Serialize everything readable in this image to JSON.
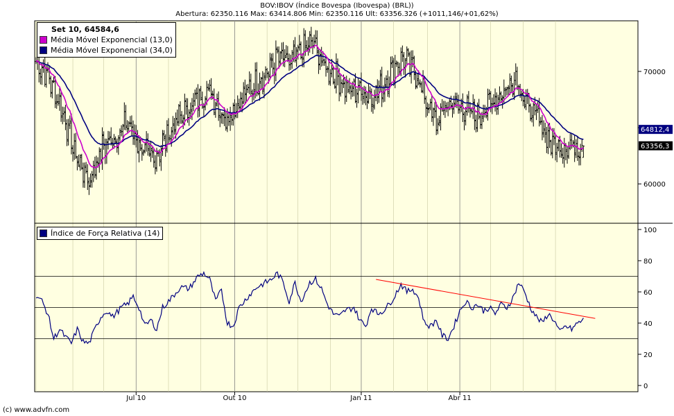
{
  "header": {
    "title": "BOV:IBOV (Índice Bovespa (Ibovespa) (BRL))",
    "subtitle": "Abertura: 62350.116 Max: 63414.806 Min: 62350.116 Ult: 63356.326 (+1011,146/+01,62%)"
  },
  "footer": {
    "credit": "(c) www.advfn.com"
  },
  "legend_main": {
    "heading": "Set 10, 64584,6",
    "items": [
      {
        "label": "Média Móvel Exponencial (13,0)",
        "color": "#cc00cc"
      },
      {
        "label": "Média Móvel Exponencial (34,0)",
        "color": "#000080"
      }
    ]
  },
  "legend_rsi": {
    "items": [
      {
        "label": "Índice de Força Relativa (14)",
        "color": "#000080"
      }
    ]
  },
  "colors": {
    "background": "#ffffe1",
    "bars": "#000000",
    "ema13": "#cc00cc",
    "ema34": "#000080",
    "rsi": "#000080",
    "trendline": "#ff0000"
  },
  "chart_data": [
    {
      "type": "ohlc",
      "title": "BOV:IBOV (Índice Bovespa (Ibovespa) (BRL))",
      "x_tick_labels": [
        "Jul 10",
        "Out 10",
        "Jan 11",
        "Abr 11"
      ],
      "y_tick_labels": [
        "60000",
        "70000"
      ],
      "ylim": [
        56500,
        74500
      ],
      "price_labels": [
        {
          "value": 64812.4,
          "text": "64812,4",
          "series": "ema34"
        },
        {
          "value": 63356.3,
          "text": "63356,3",
          "series": "close"
        }
      ],
      "last_bar": {
        "open": 62350.116,
        "high": 63414.806,
        "low": 62350.116,
        "close": 63356.326
      },
      "price_anchors": [
        [
          0,
          70900
        ],
        [
          8,
          69600
        ],
        [
          18,
          66500
        ],
        [
          27,
          62500
        ],
        [
          36,
          60200
        ],
        [
          45,
          63200
        ],
        [
          55,
          64300
        ],
        [
          62,
          65500
        ],
        [
          72,
          63000
        ],
        [
          80,
          62200
        ],
        [
          88,
          64000
        ],
        [
          98,
          66000
        ],
        [
          108,
          67300
        ],
        [
          118,
          68400
        ],
        [
          128,
          65800
        ],
        [
          136,
          66900
        ],
        [
          145,
          68500
        ],
        [
          155,
          69600
        ],
        [
          165,
          71300
        ],
        [
          172,
          70700
        ],
        [
          180,
          71800
        ],
        [
          188,
          72600
        ],
        [
          196,
          70400
        ],
        [
          204,
          69600
        ],
        [
          212,
          68300
        ],
        [
          220,
          68400
        ],
        [
          228,
          67800
        ],
        [
          236,
          68700
        ],
        [
          244,
          70600
        ],
        [
          250,
          71200
        ],
        [
          258,
          69800
        ],
        [
          266,
          67100
        ],
        [
          272,
          65400
        ],
        [
          280,
          67200
        ],
        [
          290,
          66800
        ],
        [
          300,
          65900
        ],
        [
          310,
          67400
        ],
        [
          318,
          68200
        ],
        [
          326,
          69600
        ],
        [
          334,
          66900
        ],
        [
          340,
          66000
        ],
        [
          345,
          64800
        ],
        [
          350,
          63600
        ],
        [
          355,
          63300
        ],
        [
          358,
          63356
        ]
      ],
      "series": [
        {
          "name": "Média Móvel Exponencial (13,0)",
          "key": "ema13",
          "period": 13
        },
        {
          "name": "Média Móvel Exponencial (34,0)",
          "key": "ema34",
          "period": 34
        }
      ]
    },
    {
      "type": "line",
      "legend": [
        "Índice de Força Relativa (14)"
      ],
      "y_tick_labels": [
        "0",
        "20",
        "40",
        "60",
        "80",
        "100"
      ],
      "ylim": [
        -4,
        104
      ],
      "grid_y": [
        30,
        50,
        70
      ],
      "rsi_anchors": [
        [
          0,
          58
        ],
        [
          4,
          54
        ],
        [
          8,
          46
        ],
        [
          12,
          30
        ],
        [
          16,
          36
        ],
        [
          20,
          31
        ],
        [
          24,
          27
        ],
        [
          28,
          36
        ],
        [
          32,
          28
        ],
        [
          36,
          27
        ],
        [
          40,
          36
        ],
        [
          44,
          44
        ],
        [
          48,
          48
        ],
        [
          52,
          44
        ],
        [
          58,
          50
        ],
        [
          62,
          52
        ],
        [
          66,
          57
        ],
        [
          70,
          50
        ],
        [
          74,
          38
        ],
        [
          78,
          42
        ],
        [
          82,
          36
        ],
        [
          86,
          50
        ],
        [
          92,
          56
        ],
        [
          98,
          63
        ],
        [
          104,
          62
        ],
        [
          110,
          70
        ],
        [
          114,
          72
        ],
        [
          118,
          68
        ],
        [
          122,
          54
        ],
        [
          126,
          61
        ],
        [
          130,
          40
        ],
        [
          134,
          38
        ],
        [
          138,
          50
        ],
        [
          144,
          57
        ],
        [
          150,
          63
        ],
        [
          156,
          66
        ],
        [
          160,
          68
        ],
        [
          164,
          72
        ],
        [
          168,
          66
        ],
        [
          172,
          54
        ],
        [
          176,
          66
        ],
        [
          180,
          54
        ],
        [
          186,
          66
        ],
        [
          190,
          68
        ],
        [
          194,
          62
        ],
        [
          198,
          52
        ],
        [
          202,
          46
        ],
        [
          206,
          44
        ],
        [
          210,
          48
        ],
        [
          216,
          50
        ],
        [
          220,
          42
        ],
        [
          224,
          38
        ],
        [
          228,
          50
        ],
        [
          232,
          46
        ],
        [
          236,
          48
        ],
        [
          240,
          52
        ],
        [
          244,
          58
        ],
        [
          248,
          65
        ],
        [
          252,
          60
        ],
        [
          256,
          62
        ],
        [
          260,
          56
        ],
        [
          264,
          40
        ],
        [
          268,
          38
        ],
        [
          272,
          42
        ],
        [
          276,
          32
        ],
        [
          280,
          30
        ],
        [
          284,
          38
        ],
        [
          288,
          48
        ],
        [
          292,
          54
        ],
        [
          296,
          50
        ],
        [
          300,
          52
        ],
        [
          304,
          48
        ],
        [
          308,
          50
        ],
        [
          312,
          46
        ],
        [
          316,
          52
        ],
        [
          320,
          50
        ],
        [
          324,
          56
        ],
        [
          328,
          66
        ],
        [
          332,
          60
        ],
        [
          336,
          50
        ],
        [
          340,
          44
        ],
        [
          344,
          40
        ],
        [
          348,
          46
        ],
        [
          352,
          42
        ],
        [
          356,
          34
        ],
        [
          360,
          38
        ],
        [
          364,
          36
        ],
        [
          368,
          40
        ],
        [
          372,
          42
        ]
      ],
      "trendline": {
        "from": [
          231,
          68
        ],
        "to": [
          380,
          43
        ]
      }
    }
  ]
}
